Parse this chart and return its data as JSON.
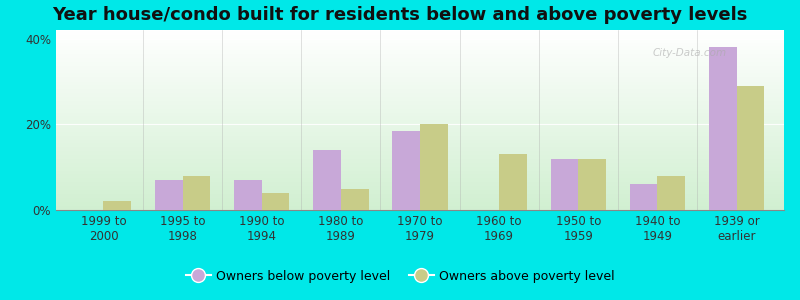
{
  "title": "Year house/condo built for residents below and above poverty levels",
  "categories": [
    "1999 to\n2000",
    "1995 to\n1998",
    "1990 to\n1994",
    "1980 to\n1989",
    "1970 to\n1979",
    "1960 to\n1969",
    "1950 to\n1959",
    "1940 to\n1949",
    "1939 or\nearlier"
  ],
  "below_poverty": [
    0.0,
    7.0,
    7.0,
    14.0,
    18.5,
    0.0,
    12.0,
    6.0,
    38.0
  ],
  "above_poverty": [
    2.0,
    8.0,
    4.0,
    5.0,
    20.0,
    13.0,
    12.0,
    8.0,
    29.0
  ],
  "below_color": "#c8a8d8",
  "above_color": "#c8cc88",
  "background_outer": "#00e8e8",
  "ylim": [
    0,
    42
  ],
  "yticks": [
    0,
    20,
    40
  ],
  "ytick_labels": [
    "0%",
    "20%",
    "40%"
  ],
  "legend_below": "Owners below poverty level",
  "legend_above": "Owners above poverty level",
  "bar_width": 0.35,
  "title_fontsize": 13,
  "tick_fontsize": 8.5,
  "legend_fontsize": 9,
  "watermark": "City-Data.com"
}
